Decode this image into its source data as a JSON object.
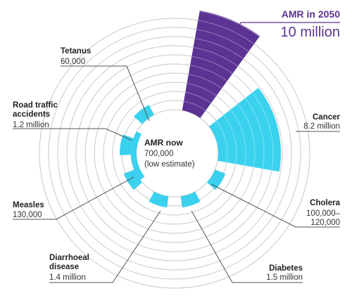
{
  "colors": {
    "accent": "#5b3393",
    "cyan": "#3ad1ef",
    "ring": "#c9c9c9",
    "leader": "#555555"
  },
  "chart_data": {
    "type": "radial-bar",
    "title": "",
    "series": [
      {
        "name": "AMR in 2050",
        "value_label": "10 million",
        "value": 10000000,
        "kind": "highlight"
      },
      {
        "name": "Cancer",
        "value_label": "8.2 million",
        "value": 8200000
      },
      {
        "name": "Cholera",
        "value_label": "100,000–120,000",
        "value_lines": [
          "100,000–",
          "120,000"
        ],
        "value": 120000
      },
      {
        "name": "Diabetes",
        "value_label": "1.5 million",
        "value": 1500000
      },
      {
        "name": "Diarrhoeal disease",
        "name_lines": [
          "Diarrhoeal",
          "disease"
        ],
        "value_label": "1.4 million",
        "value": 1400000
      },
      {
        "name": "Measles",
        "value_label": "130,000",
        "value": 130000
      },
      {
        "name": "Road traffic accidents",
        "name_lines": [
          "Road traffic",
          "accidents"
        ],
        "value_label": "1.2 million",
        "value": 1200000
      },
      {
        "name": "Tetanus",
        "value_label": "60,000",
        "value": 60000
      }
    ],
    "center": {
      "title": "AMR now",
      "value_label": "700,000",
      "note": "(low estimate)",
      "value": 700000
    }
  }
}
